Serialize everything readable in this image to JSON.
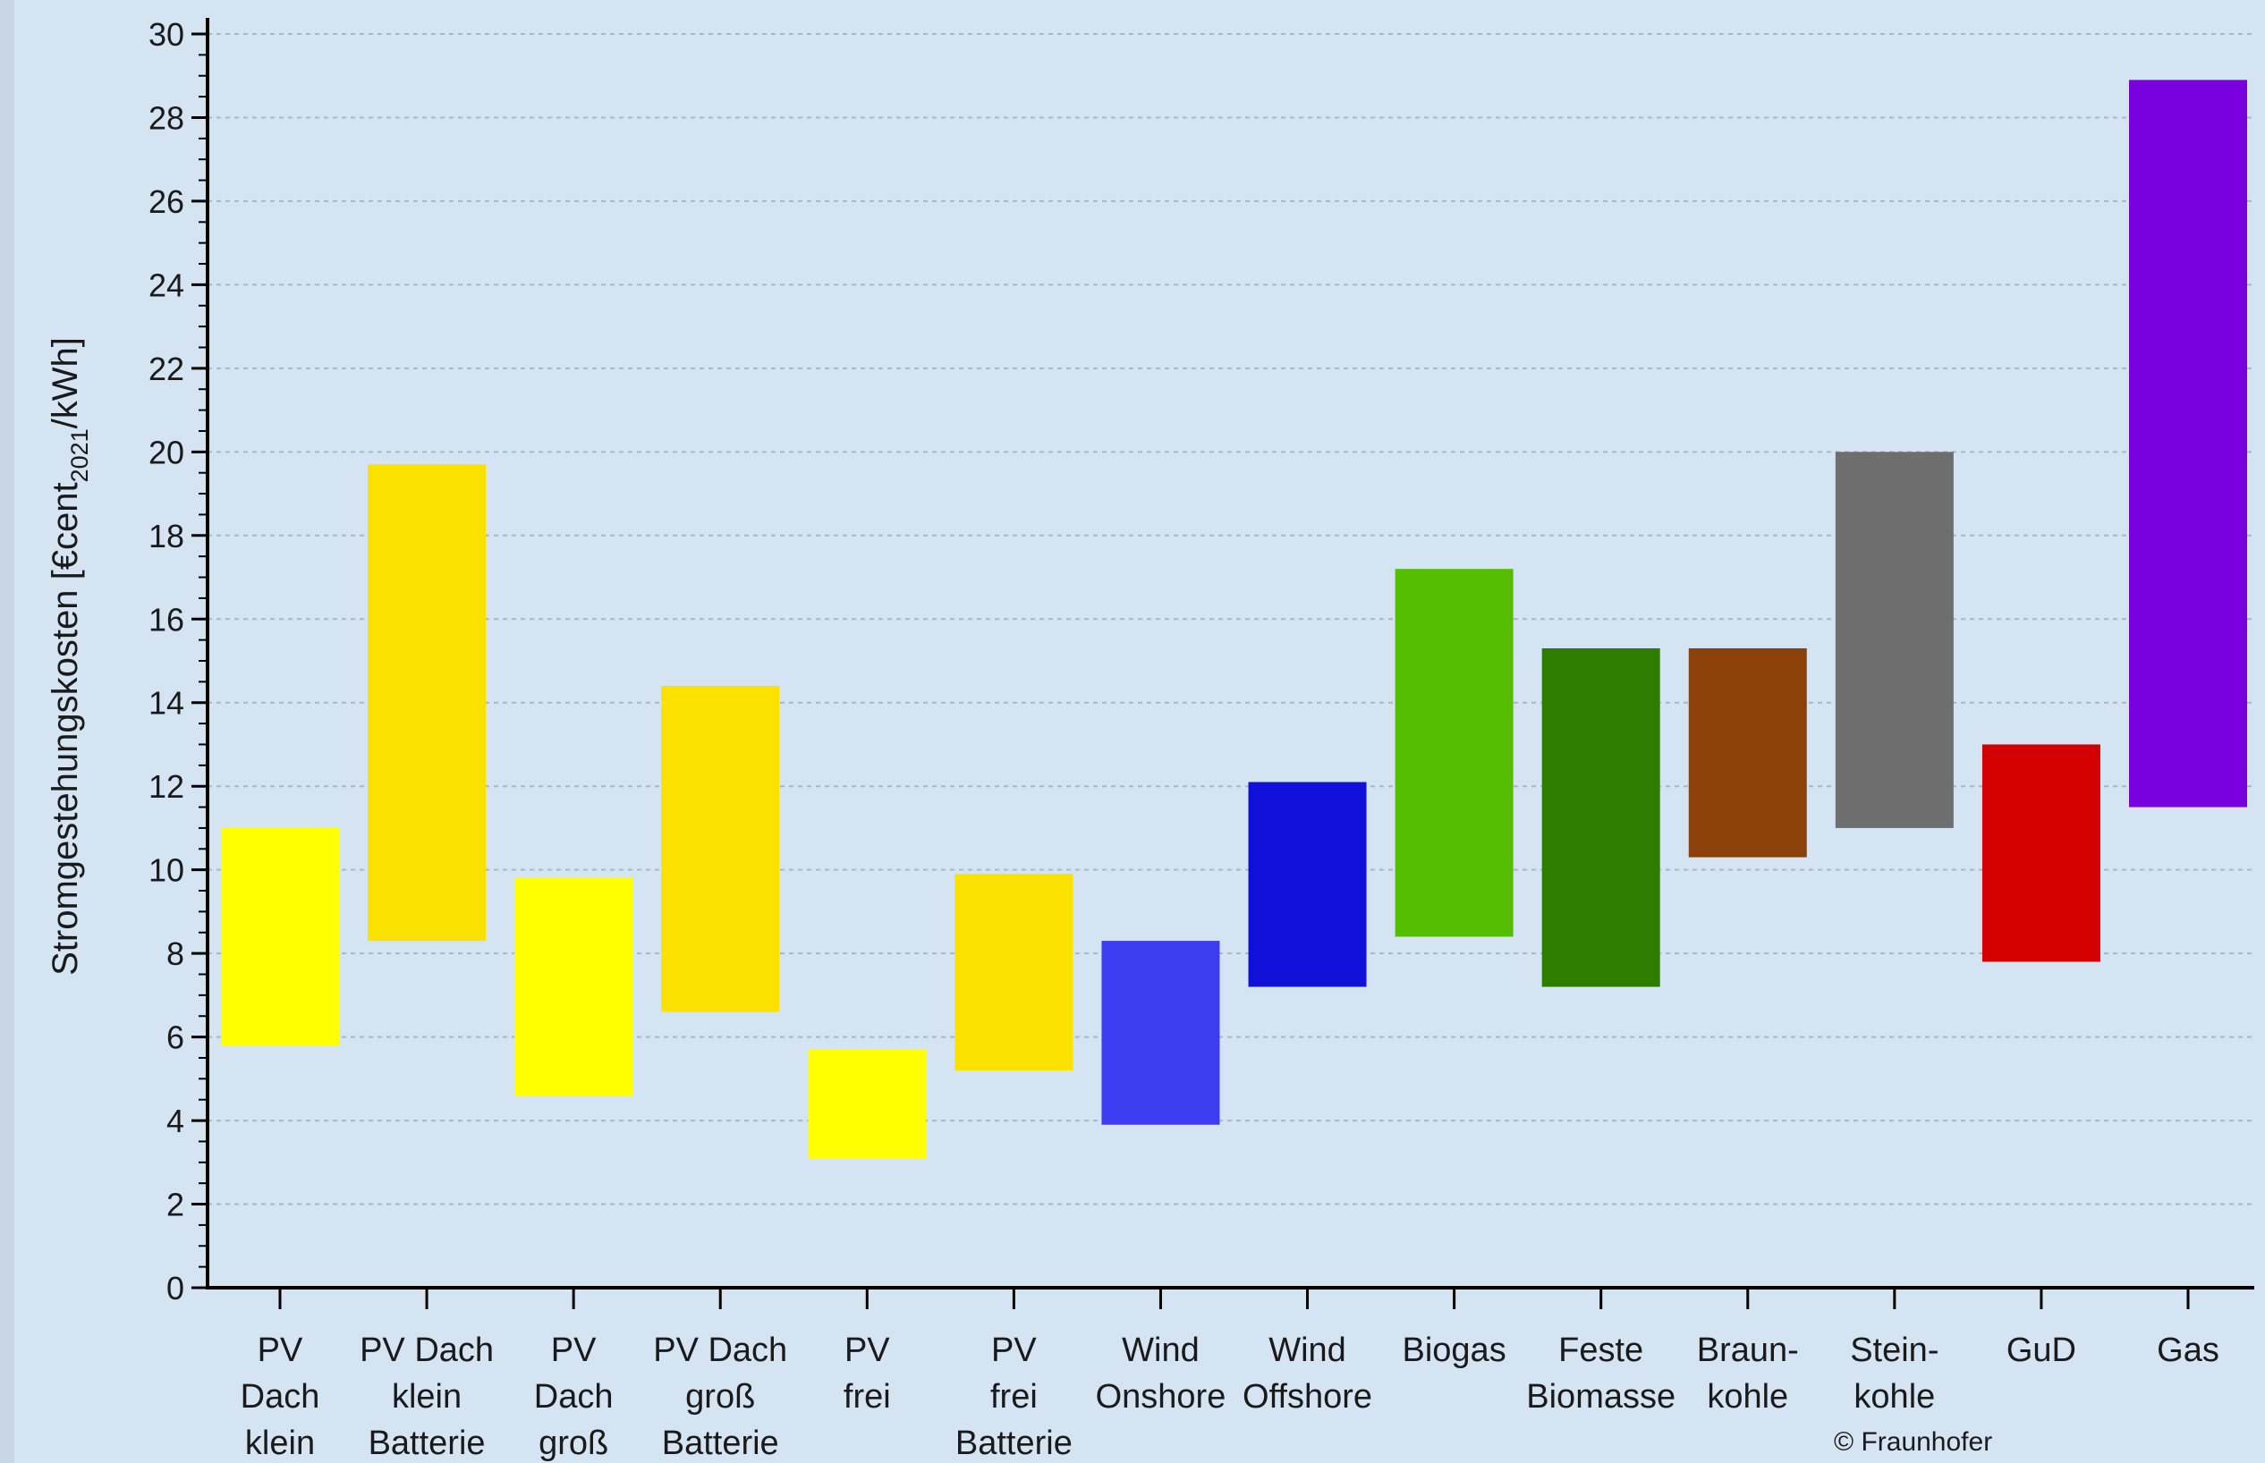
{
  "chart_data": {
    "type": "range-bar",
    "ylabel": {
      "prefix": "Stromgestehungskosten [€cent",
      "subscript": "2021",
      "suffix": "/kWh]"
    },
    "ylim": [
      0,
      30
    ],
    "yticks": [
      0,
      2,
      4,
      6,
      8,
      10,
      12,
      14,
      16,
      18,
      20,
      22,
      24,
      26,
      28,
      30
    ],
    "grid": true,
    "categories": [
      {
        "label": [
          "PV",
          "Dach",
          "klein"
        ],
        "low": 5.8,
        "high": 11.0,
        "color": "#ffff00"
      },
      {
        "label": [
          "PV Dach",
          "klein",
          "Batterie"
        ],
        "low": 8.3,
        "high": 19.7,
        "color": "#fae100"
      },
      {
        "label": [
          "PV",
          "Dach",
          "groß"
        ],
        "low": 4.6,
        "high": 9.8,
        "color": "#ffff00"
      },
      {
        "label": [
          "PV Dach",
          "groß",
          "Batterie"
        ],
        "low": 6.6,
        "high": 14.4,
        "color": "#fae100"
      },
      {
        "label": [
          "PV",
          "frei"
        ],
        "low": 3.1,
        "high": 5.7,
        "color": "#ffff00"
      },
      {
        "label": [
          "PV",
          "frei",
          "Batterie"
        ],
        "low": 5.2,
        "high": 9.9,
        "color": "#fae100"
      },
      {
        "label": [
          "Wind",
          "Onshore"
        ],
        "low": 3.9,
        "high": 8.3,
        "color": "#3c3cf0"
      },
      {
        "label": [
          "Wind",
          "Offshore"
        ],
        "low": 7.2,
        "high": 12.1,
        "color": "#1010d8"
      },
      {
        "label": [
          "Biogas"
        ],
        "low": 8.4,
        "high": 17.2,
        "color": "#55be00"
      },
      {
        "label": [
          "Feste",
          "Biomasse"
        ],
        "low": 7.2,
        "high": 15.3,
        "color": "#2d7d00"
      },
      {
        "label": [
          "Braun-",
          "kohle"
        ],
        "low": 10.3,
        "high": 15.3,
        "color": "#8c410a"
      },
      {
        "label": [
          "Stein-",
          "kohle"
        ],
        "low": 11.0,
        "high": 20.0,
        "color": "#6e6e6e"
      },
      {
        "label": [
          "GuD"
        ],
        "low": 7.8,
        "high": 13.0,
        "color": "#d20000"
      },
      {
        "label": [
          "Gas"
        ],
        "low": 11.5,
        "high": 28.9,
        "color": "#7a00e0"
      }
    ]
  },
  "copyright": "© Fraunhofer",
  "colors": {
    "plot_background": "#d5e4f2",
    "border": "#c9d7e5",
    "axis": "#000000",
    "grid": "#a9b6c4"
  }
}
